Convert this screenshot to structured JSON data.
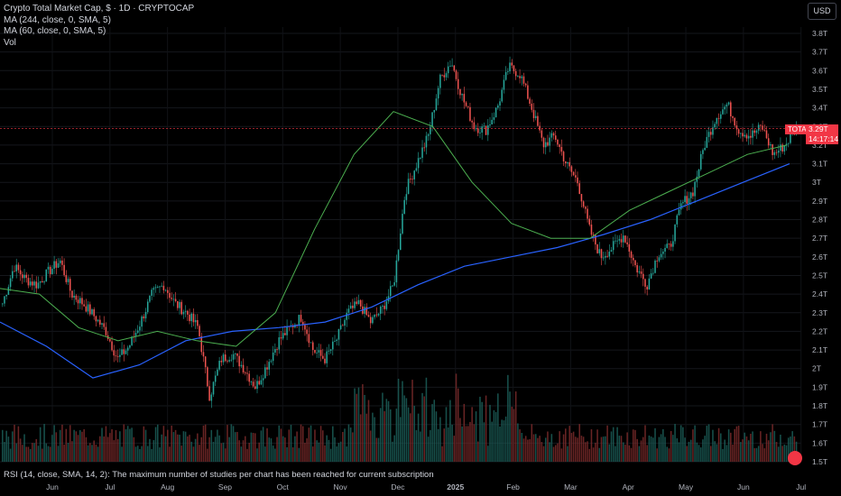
{
  "legend": {
    "title": "Crypto Total Market Cap, $ · 1D · CRYPTOCAP",
    "ma1": "MA (244, close, 0, SMA, 5)",
    "ma2": "MA (60, close, 0, SMA, 5)",
    "vol": "Vol"
  },
  "rsi_note": "RSI (14, close, SMA, 14, 2): The maximum number of studies per chart has been reached for current subscription",
  "currency": "USD",
  "price_label": {
    "symbol": "TOTAL",
    "value": "3.29T",
    "countdown": "14:17:14"
  },
  "colors": {
    "up": "#26a69a",
    "down": "#ef5350",
    "ma244": "#2962ff",
    "ma60": "#4caf50",
    "last": "#f23645"
  },
  "chart_data": {
    "type": "candlestick",
    "y_axis_labels": [
      "3.8T",
      "3.7T",
      "3.6T",
      "3.5T",
      "3.4T",
      "3.3T",
      "3.2T",
      "3.1T",
      "3T",
      "2.9T",
      "2.8T",
      "2.7T",
      "2.6T",
      "2.5T",
      "2.4T",
      "2.3T",
      "2.2T",
      "2.1T",
      "2T",
      "1.9T",
      "1.8T",
      "1.7T",
      "1.6T",
      "1.5T"
    ],
    "y_axis_values": [
      3.8,
      3.7,
      3.6,
      3.5,
      3.4,
      3.3,
      3.2,
      3.1,
      3.0,
      2.9,
      2.8,
      2.7,
      2.6,
      2.5,
      2.4,
      2.3,
      2.2,
      2.1,
      2.0,
      1.9,
      1.8,
      1.7,
      1.6,
      1.5
    ],
    "ylim": [
      1.5,
      3.83
    ],
    "x_axis_labels": [
      "Jun",
      "Jul",
      "Aug",
      "Sep",
      "Oct",
      "Nov",
      "Dec",
      "2025",
      "Feb",
      "Mar",
      "Apr",
      "May",
      "Jun",
      "Jul"
    ],
    "x_axis_month_index": [
      0,
      1,
      2,
      3,
      4,
      5,
      6,
      7,
      8,
      9,
      10,
      11,
      12,
      13
    ],
    "weekly_close": [
      2.35,
      2.55,
      2.48,
      2.45,
      2.52,
      2.58,
      2.4,
      2.35,
      2.28,
      2.2,
      2.05,
      2.12,
      2.25,
      2.4,
      2.45,
      2.35,
      2.3,
      2.22,
      1.85,
      2.05,
      2.08,
      2.0,
      1.9,
      2.02,
      2.15,
      2.22,
      2.28,
      2.1,
      2.05,
      2.15,
      2.3,
      2.35,
      2.25,
      2.32,
      2.45,
      2.95,
      3.1,
      3.25,
      3.55,
      3.65,
      3.45,
      3.3,
      3.28,
      3.4,
      3.62,
      3.58,
      3.4,
      3.2,
      3.25,
      3.1,
      3.0,
      2.75,
      2.6,
      2.65,
      2.72,
      2.55,
      2.45,
      2.62,
      2.65,
      2.88,
      2.95,
      3.2,
      3.35,
      3.42,
      3.28,
      3.25,
      3.3,
      3.15,
      3.2,
      3.29
    ],
    "ma244": [
      2.25,
      2.12,
      1.95,
      2.02,
      2.15,
      2.2,
      2.22,
      2.25,
      2.33,
      2.45,
      2.55,
      2.6,
      2.65,
      2.72,
      2.8,
      2.9,
      3.0,
      3.1
    ],
    "ma60": [
      2.43,
      2.4,
      2.22,
      2.15,
      2.2,
      2.15,
      2.12,
      2.3,
      2.75,
      3.15,
      3.38,
      3.3,
      3.0,
      2.78,
      2.7,
      2.7,
      2.85,
      2.95,
      3.05,
      3.15,
      3.2
    ],
    "last_value": 3.29
  }
}
